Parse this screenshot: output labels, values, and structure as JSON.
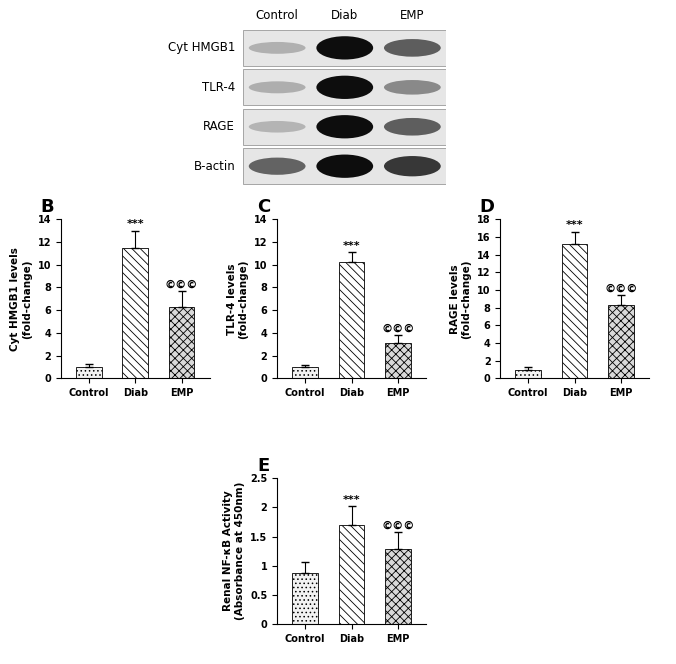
{
  "blot": {
    "lanes": [
      "Control",
      "Diab",
      "EMP"
    ],
    "rows": [
      "Cyt HMGB1",
      "TLR-4",
      "RAGE",
      "B-actin"
    ]
  },
  "chart_data": [
    {
      "type": "bar",
      "panel": "B",
      "y_label": "Cyt HMGB1 levels\n(fold-change)",
      "categories": [
        "Control",
        "Diab",
        "EMP"
      ],
      "values": [
        1.0,
        11.5,
        6.3
      ],
      "errors": [
        0.3,
        1.5,
        1.4
      ],
      "ylim": [
        0,
        14
      ],
      "yticks": [
        0,
        2,
        4,
        6,
        8,
        10,
        12,
        14
      ],
      "annotations": [
        {
          "category": "Diab",
          "text": "***"
        },
        {
          "category": "EMP",
          "text": "©©©"
        }
      ]
    },
    {
      "type": "bar",
      "panel": "C",
      "y_label": "TLR-4 levels\n(fold-change)",
      "categories": [
        "Control",
        "Diab",
        "EMP"
      ],
      "values": [
        1.0,
        10.2,
        3.1
      ],
      "errors": [
        0.2,
        0.9,
        0.7
      ],
      "ylim": [
        0,
        14
      ],
      "yticks": [
        0,
        2,
        4,
        6,
        8,
        10,
        12,
        14
      ],
      "annotations": [
        {
          "category": "Diab",
          "text": "***"
        },
        {
          "category": "EMP",
          "text": "©©©"
        }
      ]
    },
    {
      "type": "bar",
      "panel": "D",
      "y_label": "RAGE levels\n(fold-change)",
      "categories": [
        "Control",
        "Diab",
        "EMP"
      ],
      "values": [
        1.0,
        15.2,
        8.3
      ],
      "errors": [
        0.3,
        1.4,
        1.1
      ],
      "ylim": [
        0,
        18
      ],
      "yticks": [
        0,
        2,
        4,
        6,
        8,
        10,
        12,
        14,
        16,
        18
      ],
      "annotations": [
        {
          "category": "Diab",
          "text": "***"
        },
        {
          "category": "EMP",
          "text": "©©©"
        }
      ]
    },
    {
      "type": "bar",
      "panel": "E",
      "y_label": "Renal NF-κB Activity\n(Absorbance at 450nm)",
      "categories": [
        "Control",
        "Diab",
        "EMP"
      ],
      "values": [
        0.87,
        1.69,
        1.29
      ],
      "errors": [
        0.19,
        0.33,
        0.28
      ],
      "ylim": [
        0,
        2.5
      ],
      "yticks": [
        0,
        0.5,
        1,
        1.5,
        2,
        2.5
      ],
      "annotations": [
        {
          "category": "Diab",
          "text": "***"
        },
        {
          "category": "EMP",
          "text": "©©©"
        }
      ]
    }
  ]
}
